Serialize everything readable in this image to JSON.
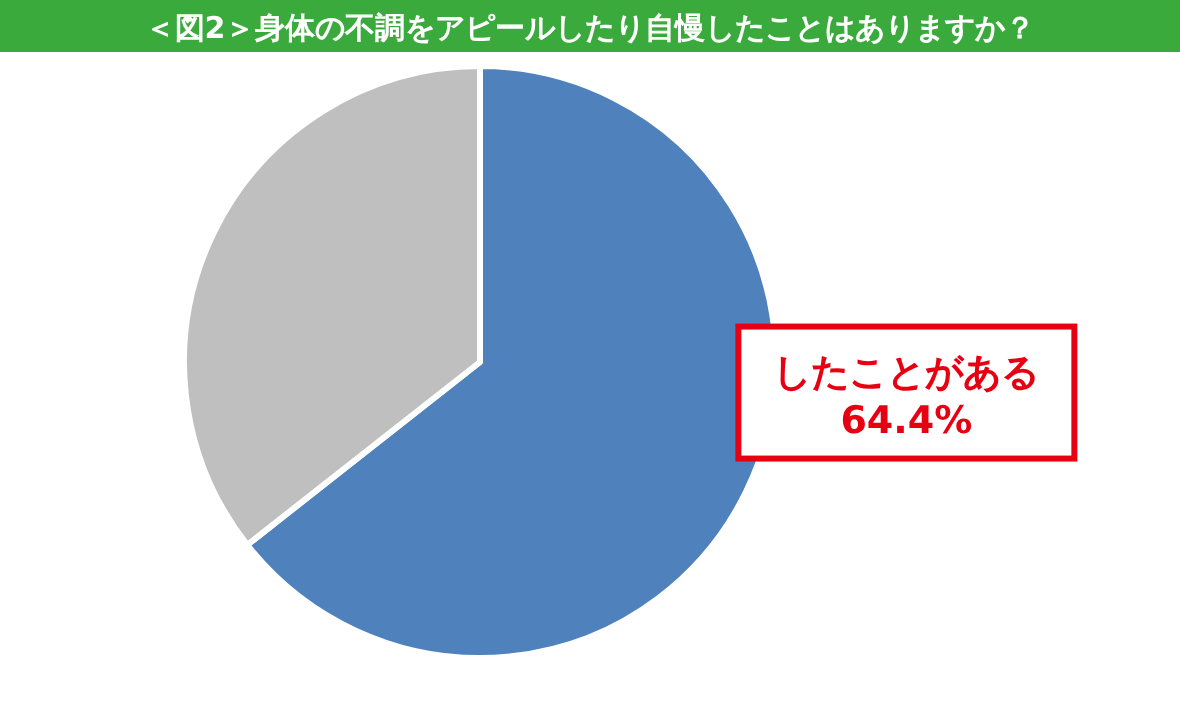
{
  "chart_data": {
    "type": "pie",
    "title": "＜図2＞身体の不調をアピールしたり自慢したことはありますか？",
    "categories": [
      "したことがある",
      null
    ],
    "values": [
      64.4,
      35.6
    ],
    "colors": [
      "#4f81bd",
      "#bfbfbf"
    ],
    "value_labels": [
      "64.4%",
      null
    ]
  }
}
